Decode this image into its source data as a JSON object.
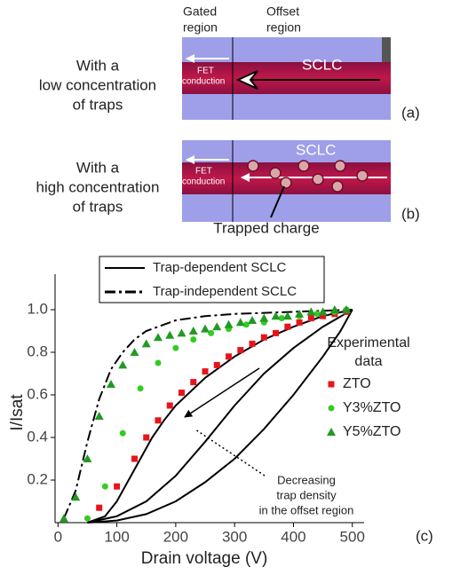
{
  "diagrams": {
    "gated_region": [
      "Gated",
      "region"
    ],
    "offset_region": [
      "Offset",
      "region"
    ],
    "panel_a": {
      "label": [
        "With a",
        "low concentration",
        "of traps"
      ],
      "fet": [
        "FET",
        "conduction"
      ],
      "sclc": "SCLC",
      "tag": "(a)"
    },
    "panel_b": {
      "label": [
        "With a",
        "high concentration",
        "of traps"
      ],
      "fet": [
        "FET",
        "conduction"
      ],
      "sclc": "SCLC",
      "trapped": "Trapped charge",
      "tag": "(b)"
    }
  },
  "chart_data": {
    "type": "line",
    "tag": "(c)",
    "x_label": "Drain voltage (V)",
    "y_label": "I/Isat",
    "xlim": [
      -5,
      520
    ],
    "ylim": [
      0,
      1.25
    ],
    "xticks": [
      0,
      100,
      200,
      300,
      400,
      500
    ],
    "yticks": [
      0.2,
      0.4,
      0.6,
      0.8,
      {
        "value": 1,
        "label": "1.0"
      }
    ],
    "legend_title": [
      "Experimental",
      "data"
    ],
    "annotation": [
      "Decreasing",
      "trap density",
      "in the offset region"
    ],
    "series": [
      {
        "name": "Trap-dependent SCLC",
        "style": "solid",
        "color": "#000000",
        "x": [
          50,
          80,
          100,
          120,
          140,
          160,
          180,
          200,
          250,
          300,
          350,
          400,
          450,
          500
        ],
        "values": [
          0,
          0.03,
          0.1,
          0.2,
          0.3,
          0.4,
          0.48,
          0.55,
          0.68,
          0.78,
          0.86,
          0.92,
          0.97,
          1.0
        ]
      },
      {
        "style": "solid",
        "color": "#000000",
        "x": [
          50,
          100,
          150,
          200,
          250,
          300,
          350,
          400,
          450,
          500
        ],
        "values": [
          0,
          0.03,
          0.1,
          0.22,
          0.38,
          0.55,
          0.7,
          0.82,
          0.92,
          1.0
        ]
      },
      {
        "style": "solid",
        "color": "#000000",
        "x": [
          50,
          100,
          150,
          200,
          250,
          300,
          350,
          400,
          450,
          480,
          500
        ],
        "values": [
          0,
          0.01,
          0.04,
          0.1,
          0.19,
          0.3,
          0.44,
          0.6,
          0.78,
          0.9,
          1.0
        ]
      },
      {
        "name": "Trap-independent SCLC",
        "style": "dashdot",
        "color": "#000000",
        "x": [
          10,
          30,
          50,
          70,
          90,
          110,
          130,
          150,
          200,
          250,
          300,
          400,
          500
        ],
        "values": [
          0.02,
          0.15,
          0.38,
          0.58,
          0.72,
          0.8,
          0.86,
          0.9,
          0.95,
          0.97,
          0.98,
          0.99,
          1.0
        ]
      },
      {
        "name": "ZTO",
        "marker": "square",
        "color": "#e8141c",
        "x": [
          70,
          100,
          130,
          150,
          170,
          190,
          210,
          230,
          250,
          270,
          290,
          310,
          330,
          350,
          370,
          390,
          410,
          430,
          450,
          470,
          490
        ],
        "values": [
          0.07,
          0.17,
          0.3,
          0.4,
          0.48,
          0.55,
          0.61,
          0.66,
          0.71,
          0.74,
          0.78,
          0.81,
          0.84,
          0.87,
          0.89,
          0.92,
          0.94,
          0.96,
          0.97,
          0.98,
          0.99
        ]
      },
      {
        "name": "Y3%ZTO",
        "marker": "circle",
        "color": "#33cc22",
        "x": [
          50,
          80,
          110,
          140,
          170,
          200,
          230,
          260,
          290,
          320,
          350,
          380,
          410,
          440,
          470,
          490
        ],
        "values": [
          0.02,
          0.17,
          0.42,
          0.63,
          0.75,
          0.82,
          0.86,
          0.89,
          0.91,
          0.93,
          0.94,
          0.96,
          0.97,
          0.98,
          0.99,
          1.0
        ]
      },
      {
        "name": "Y5%ZTO",
        "marker": "triangle",
        "color": "#229922",
        "x": [
          10,
          30,
          50,
          70,
          90,
          110,
          130,
          150,
          170,
          190,
          210,
          230,
          250,
          270,
          290,
          310,
          330,
          350,
          370,
          390,
          410,
          430,
          450,
          470,
          490
        ],
        "values": [
          0.02,
          0.12,
          0.3,
          0.5,
          0.65,
          0.74,
          0.8,
          0.84,
          0.87,
          0.88,
          0.89,
          0.9,
          0.91,
          0.92,
          0.93,
          0.94,
          0.95,
          0.96,
          0.97,
          0.97,
          0.98,
          0.99,
          0.99,
          1.0,
          1.0
        ]
      }
    ]
  }
}
